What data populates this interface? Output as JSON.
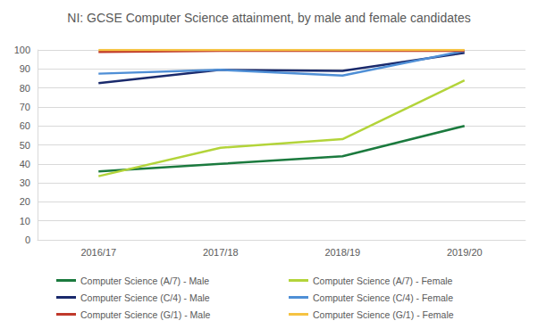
{
  "chart_data": {
    "type": "line",
    "title": "NI: GCSE Computer Science attainment, by male and female candidates",
    "categories": [
      "2016/17",
      "2017/18",
      "2018/19",
      "2019/20"
    ],
    "series": [
      {
        "name": "Computer Science (A/7) - Male",
        "color": "#1b7a3e",
        "values": [
          36,
          40,
          44,
          60
        ]
      },
      {
        "name": "Computer Science (A/7) - Female",
        "color": "#b3d43a",
        "values": [
          33.5,
          48.5,
          53,
          84
        ]
      },
      {
        "name": "Computer Science (C/4) - Male",
        "color": "#1a2a6c",
        "values": [
          82.5,
          89.5,
          89,
          98.5
        ]
      },
      {
        "name": "Computer Science (C/4) - Female",
        "color": "#4f8fd6",
        "values": [
          87.5,
          89.5,
          86.5,
          99.5
        ]
      },
      {
        "name": "Computer Science (G/1) - Male",
        "color": "#c0392b",
        "values": [
          99,
          99.5,
          99.5,
          99.5
        ]
      },
      {
        "name": "Computer Science (G/1) - Female",
        "color": "#f5c342",
        "values": [
          100,
          100,
          100,
          100
        ]
      }
    ],
    "ylim": [
      0,
      100
    ],
    "yticks": [
      0,
      10,
      20,
      30,
      40,
      50,
      60,
      70,
      80,
      90,
      100
    ],
    "grid": true,
    "legend": "bottom"
  }
}
